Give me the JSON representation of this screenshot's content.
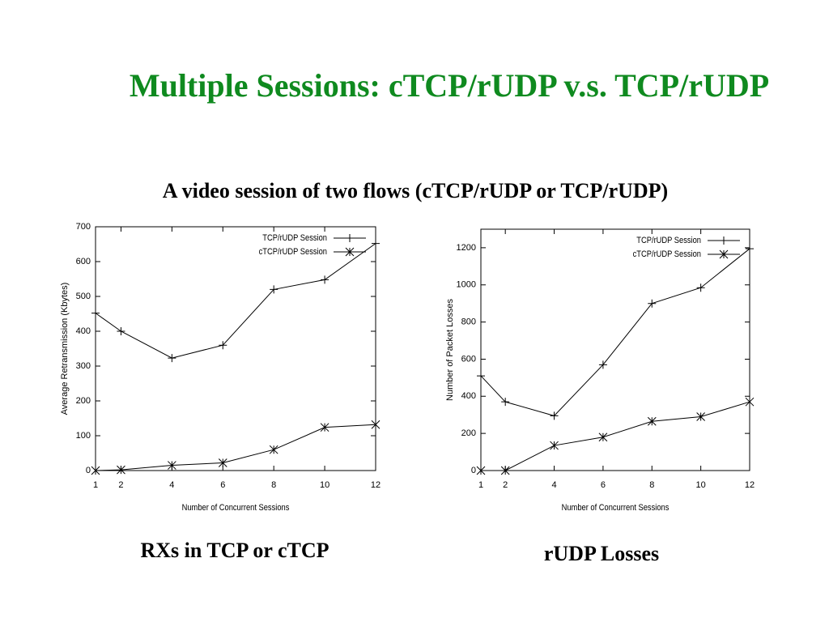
{
  "title": "Multiple Sessions: cTCP/rUDP v.s. TCP/rUDP",
  "subtitle": "A video session of two flows (cTCP/rUDP or TCP/rUDP)",
  "captions": [
    "RXs in TCP or cTCP",
    "rUDP Losses"
  ],
  "chart_data": [
    {
      "type": "line",
      "x_label": "Number of Concurrent Sessions",
      "y_label": "Average Retransmission (Kbytes)",
      "x": [
        1,
        2,
        4,
        6,
        8,
        10,
        12
      ],
      "xlim": [
        1,
        12
      ],
      "xticks": [
        1,
        2,
        4,
        6,
        8,
        10,
        12
      ],
      "ylim": [
        0,
        700
      ],
      "yticks": [
        0,
        100,
        200,
        300,
        400,
        500,
        600,
        700
      ],
      "grid": false,
      "legend": "upper right",
      "series": [
        {
          "name": "TCP/rUDP Session",
          "color": "#000000",
          "marker": "plus",
          "values": [
            452,
            400,
            323,
            360,
            520,
            548,
            652
          ]
        },
        {
          "name": "cTCP/rUDP Session",
          "color": "#000000",
          "marker": "cross",
          "values": [
            0,
            2,
            15,
            22,
            60,
            124,
            132
          ]
        }
      ]
    },
    {
      "type": "line",
      "x_label": "Number of Concurrent Sessions",
      "y_label": "Number of Packet Losses",
      "x": [
        1,
        2,
        4,
        6,
        8,
        10,
        12
      ],
      "xlim": [
        1,
        12
      ],
      "xticks": [
        1,
        2,
        4,
        6,
        8,
        10,
        12
      ],
      "ylim": [
        0,
        1300
      ],
      "yticks": [
        0,
        200,
        400,
        600,
        800,
        1000,
        1200
      ],
      "grid": false,
      "legend": "upper right",
      "series": [
        {
          "name": "TCP/rUDP Session",
          "color": "#000000",
          "marker": "plus",
          "values": [
            510,
            370,
            295,
            570,
            900,
            985,
            1195
          ]
        },
        {
          "name": "cTCP/rUDP Session",
          "color": "#000000",
          "marker": "cross",
          "values": [
            0,
            0,
            135,
            180,
            265,
            290,
            370
          ]
        }
      ]
    }
  ]
}
